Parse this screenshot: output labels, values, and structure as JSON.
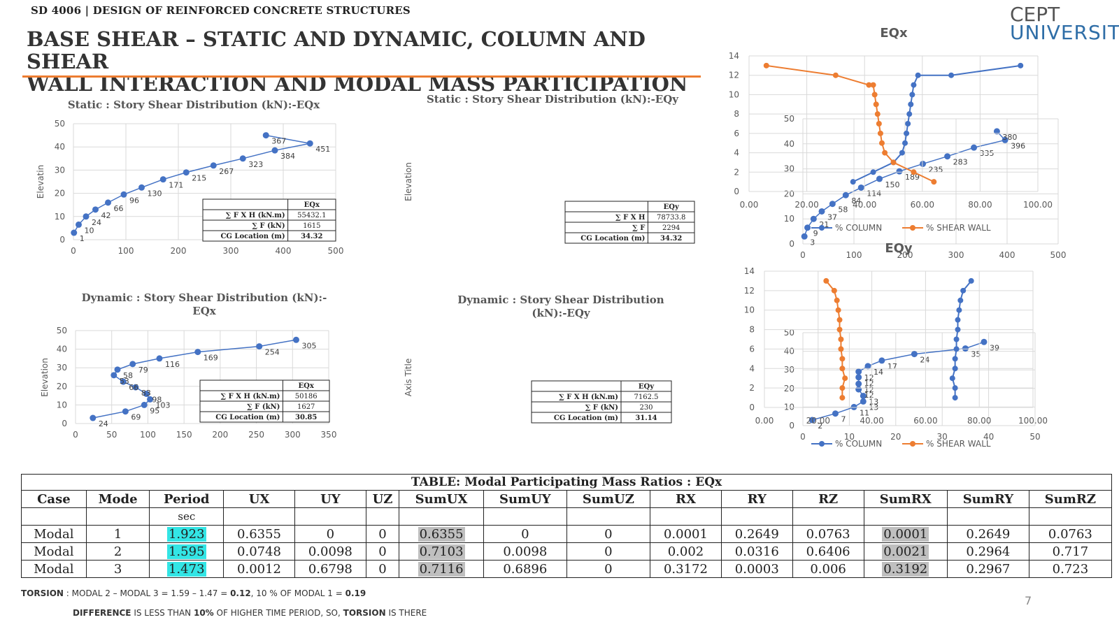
{
  "header": {
    "course": "SD 4006 | DESIGN OF REINFORCED CONCRETE STRUCTURES",
    "title_line1": "BASE SHEAR – STATIC AND DYNAMIC, COLUMN AND SHEAR",
    "title_line2": "WALL INTERACTION AND MODAL MASS PARTICIPATION",
    "logo_top": "CEPT",
    "logo_bottom": "UNIVERSITY",
    "accent_color": "#ed7d31"
  },
  "chart_data": [
    {
      "id": "static_eqx",
      "type": "scatter",
      "title": "Static : Story Shear Distribution (kN):-EQx",
      "xlabel": "",
      "ylabel": "Elevatin",
      "xlim": [
        0,
        500
      ],
      "ylim": [
        0,
        50
      ],
      "xticks": [
        0,
        100,
        200,
        300,
        400,
        500
      ],
      "yticks": [
        0,
        10,
        20,
        30,
        40,
        50
      ],
      "x": [
        1,
        10,
        24,
        42,
        66,
        96,
        130,
        171,
        215,
        267,
        323,
        384,
        451,
        367
      ],
      "y": [
        3,
        6.5,
        10,
        13,
        16,
        19.5,
        22.5,
        26,
        29,
        32,
        35,
        38.5,
        41.5,
        45
      ],
      "labels": [
        "1",
        "10",
        "24",
        "42",
        "66",
        "96",
        "130",
        "171",
        "215",
        "267",
        "323",
        "384",
        "451",
        "367"
      ],
      "table": {
        "header": "EQx",
        "rows": [
          [
            "∑ F X H (kN.m)",
            "55432.1"
          ],
          [
            "∑ F (kN)",
            "1615"
          ],
          [
            "CG Location (m)",
            "34.32"
          ]
        ]
      }
    },
    {
      "id": "static_eqy",
      "type": "scatter",
      "title": "Static : Story Shear Distribution (kN):-EQy",
      "xlabel": "",
      "ylabel": "Elevation",
      "xlim": [
        0,
        500
      ],
      "ylim": [
        0,
        50
      ],
      "xticks": [
        0,
        100,
        200,
        300,
        400,
        500
      ],
      "yticks": [
        0,
        10,
        20,
        30,
        40,
        50
      ],
      "x": [
        3,
        9,
        21,
        37,
        58,
        84,
        114,
        150,
        189,
        235,
        283,
        335,
        396,
        380
      ],
      "y": [
        3,
        6.5,
        10,
        13,
        16,
        19.5,
        22.5,
        26,
        29,
        32,
        35,
        38.5,
        41.5,
        45
      ],
      "labels": [
        "3",
        "9",
        "21",
        "37",
        "58",
        "84",
        "114",
        "150",
        "189",
        "235",
        "283",
        "335",
        "396",
        "380"
      ],
      "table": {
        "header": "EQy",
        "rows": [
          [
            "∑ F X H",
            "78733.8"
          ],
          [
            "∑ F",
            "2294"
          ],
          [
            "CG Location (m)",
            "34.32"
          ]
        ]
      }
    },
    {
      "id": "dynamic_eqx",
      "type": "scatter",
      "title": "Dynamic : Story Shear Distribution (kN):-",
      "title2": "EQx",
      "xlabel": "",
      "ylabel": "Elevation",
      "xlim": [
        0,
        350
      ],
      "ylim": [
        0,
        50
      ],
      "xticks": [
        0,
        50,
        100,
        150,
        200,
        250,
        300,
        350
      ],
      "yticks": [
        0,
        10,
        20,
        30,
        40,
        50
      ],
      "x": [
        24,
        69,
        95,
        103,
        98,
        83,
        66,
        53,
        58,
        79,
        116,
        169,
        254,
        305
      ],
      "y": [
        3,
        6.5,
        10,
        13,
        16,
        19.5,
        22.5,
        26,
        29,
        32,
        35,
        38.5,
        41.5,
        45
      ],
      "labels": [
        "24",
        "69",
        "95",
        "103",
        "98",
        "83",
        "66",
        "53",
        "58",
        "79",
        "116",
        "169",
        "254",
        "305"
      ],
      "table": {
        "header": "EQx",
        "rows": [
          [
            "∑ F X H (kN.m)",
            "50186"
          ],
          [
            "∑ F (kN)",
            "1627"
          ],
          [
            "CG Location (m)",
            "30.85"
          ]
        ]
      }
    },
    {
      "id": "dynamic_eqy",
      "type": "scatter",
      "title": "Dynamic : Story Shear Distribution",
      "title2": "(kN):-EQy",
      "xlabel": "",
      "ylabel": "Axis Title",
      "xlim": [
        0,
        50
      ],
      "ylim": [
        0,
        50
      ],
      "xticks": [
        0,
        10,
        20,
        30,
        40,
        50
      ],
      "yticks": [
        0,
        10,
        20,
        30,
        40,
        50
      ],
      "x": [
        2,
        7,
        11,
        13,
        13,
        12,
        12,
        12,
        12,
        14,
        17,
        24,
        35,
        39
      ],
      "y": [
        3,
        6.5,
        10,
        13,
        16,
        19.5,
        22.5,
        26,
        29,
        32,
        35,
        38.5,
        41.5,
        45
      ],
      "labels": [
        "2",
        "7",
        "11",
        "13",
        "13",
        "12",
        "12",
        "12",
        "12",
        "14",
        "17",
        "24",
        "35",
        "39"
      ],
      "table": {
        "header": "EQy",
        "rows": [
          [
            "∑ F X H (kN.m)",
            "7162.5"
          ],
          [
            "∑ F (kN)",
            "230"
          ],
          [
            "CG Location (m)",
            "31.14"
          ]
        ]
      }
    },
    {
      "id": "eqx_percent",
      "type": "line",
      "title": "EQx",
      "xlim": [
        0,
        100
      ],
      "ylim": [
        0,
        14
      ],
      "xticks": [
        "0.00",
        "20.00",
        "40.00",
        "60.00",
        "80.00",
        "100.00"
      ],
      "yticks": [
        0,
        2,
        4,
        6,
        8,
        10,
        12,
        14
      ],
      "legend": "bottom",
      "series": [
        {
          "name": "% COLUMN",
          "color": "#4472c4",
          "x": [
            36,
            43,
            50,
            53,
            54,
            54.5,
            55,
            55.5,
            56,
            56.5,
            57,
            58.5,
            70,
            94
          ],
          "y": [
            1,
            2,
            3,
            4,
            5,
            6,
            7,
            8,
            9,
            10,
            11,
            12,
            12,
            13
          ]
        },
        {
          "name": "% SHEAR WALL",
          "color": "#ed7d31",
          "x": [
            64,
            57,
            50,
            47,
            46,
            45.5,
            45,
            44.5,
            44,
            43.5,
            43,
            41.5,
            30,
            6
          ],
          "y": [
            1,
            2,
            3,
            4,
            5,
            6,
            7,
            8,
            9,
            10,
            11,
            11,
            12,
            13
          ]
        }
      ]
    },
    {
      "id": "eqy_percent",
      "type": "line",
      "title": "EQy",
      "xlim": [
        0,
        100
      ],
      "ylim": [
        0,
        14
      ],
      "xticks": [
        "0.00",
        "20.00",
        "40.00",
        "60.00",
        "80.00",
        "100.00"
      ],
      "yticks": [
        0,
        2,
        4,
        6,
        8,
        10,
        12,
        14
      ],
      "legend": "bottom",
      "series": [
        {
          "name": "% COLUMN",
          "color": "#4472c4",
          "x": [
            71,
            71,
            70,
            71,
            71,
            71.5,
            71.5,
            72,
            72,
            72.5,
            73,
            74,
            77
          ],
          "y": [
            1,
            2,
            3,
            4,
            5,
            6,
            7,
            8,
            9,
            10,
            11,
            12,
            13
          ]
        },
        {
          "name": "% SHEAR WALL",
          "color": "#ed7d31",
          "x": [
            29,
            29,
            30,
            29,
            29,
            28.5,
            28.5,
            28,
            28,
            27.5,
            27,
            26,
            23
          ],
          "y": [
            1,
            2,
            3,
            4,
            5,
            6,
            7,
            8,
            9,
            10,
            11,
            12,
            13
          ]
        }
      ]
    }
  ],
  "modal_table": {
    "caption": "TABLE:  Modal Participating Mass Ratios : EQx",
    "headers": [
      "Case",
      "Mode",
      "Period",
      "UX",
      "UY",
      "UZ",
      "SumUX",
      "SumUY",
      "SumUZ",
      "RX",
      "RY",
      "RZ",
      "SumRX",
      "SumRY",
      "SumRZ"
    ],
    "units": [
      "",
      "",
      "sec",
      "",
      "",
      "",
      "",
      "",
      "",
      "",
      "",
      "",
      "",
      "",
      ""
    ],
    "rows": [
      [
        "Modal",
        "1",
        "1.923",
        "0.6355",
        "0",
        "0",
        "0.6355",
        "0",
        "0",
        "0.0001",
        "0.2649",
        "0.0763",
        "0.0001",
        "0.2649",
        "0.0763"
      ],
      [
        "Modal",
        "2",
        "1.595",
        "0.0748",
        "0.0098",
        "0",
        "0.7103",
        "0.0098",
        "0",
        "0.002",
        "0.0316",
        "0.6406",
        "0.0021",
        "0.2964",
        "0.717"
      ],
      [
        "Modal",
        "3",
        "1.473",
        "0.0012",
        "0.6798",
        "0",
        "0.7116",
        "0.6896",
        "0",
        "0.3172",
        "0.0003",
        "0.006",
        "0.3192",
        "0.2967",
        "0.723"
      ]
    ],
    "highlight_cyan_col": 2,
    "highlight_grey_cols": [
      6,
      12
    ]
  },
  "notes": {
    "torsion_label": "TORSION",
    "torsion_text_a": " : MODAL 2 – MODAL 3 = 1.59 – 1.47 = ",
    "torsion_val_a": "0.12",
    "torsion_text_b": ",  10 % OF MODAL 1 = ",
    "torsion_val_b": "0.19",
    "diff_label": "DIFFERENCE",
    "diff_text_a": " IS LESS THAN ",
    "diff_val": "10%",
    "diff_text_b": " OF HIGHER TIME PERIOD, SO, ",
    "diff_label2": "TORSION",
    "diff_text_c": " IS THERE"
  },
  "page_number": "7"
}
